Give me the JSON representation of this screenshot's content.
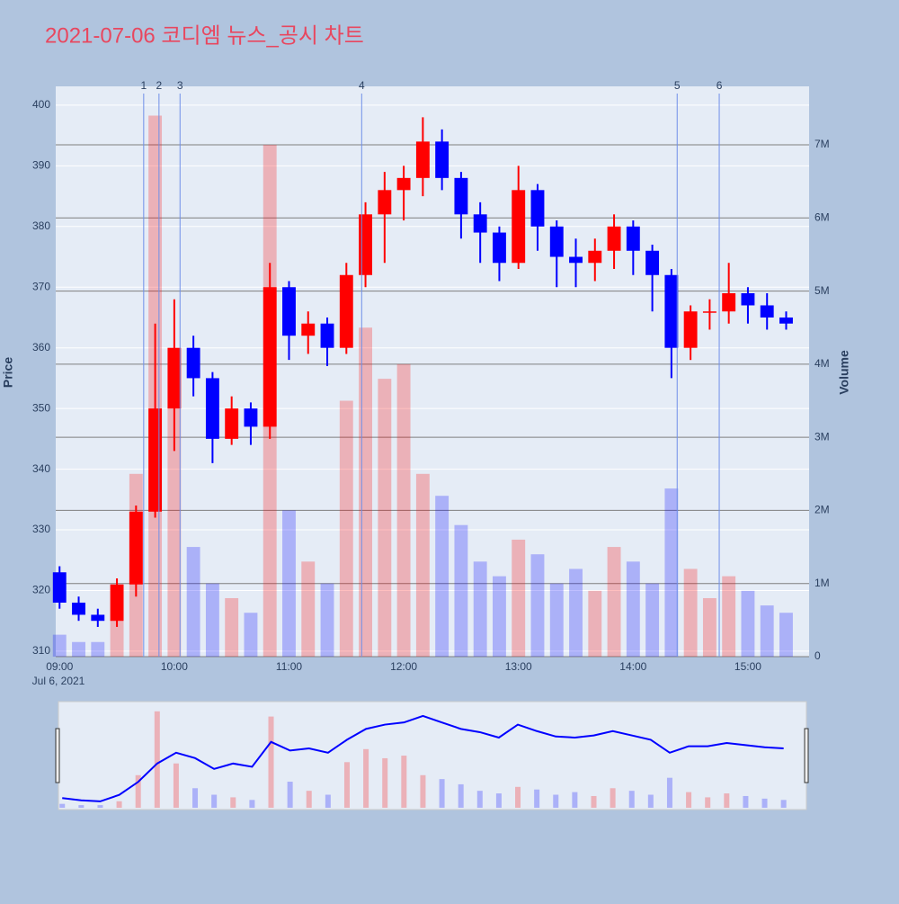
{
  "chart_data": {
    "type": "candlestick",
    "title": "2021-07-06 코디엠 뉴스_공시 차트",
    "y_label": "Price",
    "y2_label": "Volume",
    "x_date_label": "Jul 6, 2021",
    "increasing_color": "#ff0000",
    "decreasing_color": "#0000ff",
    "grid": true,
    "range_slider": true,
    "x": [
      "09:00",
      "09:10",
      "09:20",
      "09:30",
      "09:40",
      "09:50",
      "10:00",
      "10:10",
      "10:20",
      "10:30",
      "10:40",
      "10:50",
      "11:00",
      "11:10",
      "11:20",
      "11:30",
      "11:40",
      "11:50",
      "12:00",
      "12:10",
      "12:20",
      "12:30",
      "12:40",
      "12:50",
      "13:00",
      "13:10",
      "13:20",
      "13:30",
      "13:40",
      "13:50",
      "14:00",
      "14:10",
      "14:20",
      "14:30",
      "14:40",
      "14:50",
      "15:00",
      "15:10",
      "15:20"
    ],
    "open": [
      323,
      318,
      316,
      315,
      321,
      333,
      350,
      360,
      355,
      345,
      350,
      347,
      370,
      362,
      364,
      360,
      372,
      382,
      386,
      388,
      394,
      388,
      382,
      379,
      374,
      386,
      380,
      375,
      374,
      376,
      380,
      376,
      372,
      360,
      366,
      366,
      369,
      367,
      365
    ],
    "high": [
      324,
      319,
      317,
      322,
      334,
      364,
      368,
      362,
      356,
      352,
      351,
      374,
      371,
      366,
      365,
      374,
      384,
      389,
      390,
      398,
      396,
      389,
      384,
      380,
      390,
      387,
      381,
      378,
      378,
      382,
      381,
      377,
      373,
      367,
      368,
      374,
      370,
      369,
      366
    ],
    "low": [
      317,
      315,
      314,
      314,
      319,
      332,
      343,
      352,
      341,
      344,
      344,
      345,
      358,
      359,
      357,
      359,
      370,
      374,
      381,
      385,
      386,
      378,
      374,
      371,
      373,
      376,
      370,
      370,
      371,
      373,
      372,
      366,
      355,
      358,
      363,
      364,
      364,
      363,
      363
    ],
    "close": [
      318,
      316,
      315,
      321,
      333,
      350,
      360,
      355,
      345,
      350,
      347,
      370,
      362,
      364,
      360,
      372,
      382,
      386,
      388,
      394,
      388,
      382,
      379,
      374,
      386,
      380,
      375,
      374,
      376,
      380,
      376,
      372,
      360,
      366,
      366,
      369,
      367,
      365,
      364
    ],
    "volume": [
      300000,
      200000,
      200000,
      500000,
      2500000,
      7400000,
      3400000,
      1500000,
      1000000,
      800000,
      600000,
      7000000,
      2000000,
      1300000,
      1000000,
      3500000,
      4500000,
      3800000,
      4000000,
      2500000,
      2200000,
      1800000,
      1300000,
      1100000,
      1600000,
      1400000,
      1000000,
      1200000,
      900000,
      1500000,
      1300000,
      1000000,
      2300000,
      1200000,
      800000,
      1100000,
      900000,
      700000,
      600000
    ],
    "xlim": [
      "08:58",
      "15:32"
    ],
    "xticks": [
      "09:00",
      "10:00",
      "11:00",
      "12:00",
      "13:00",
      "14:00",
      "15:00"
    ],
    "ylim": [
      309.1,
      403.1
    ],
    "yticks": [
      310,
      320,
      330,
      340,
      350,
      360,
      370,
      380,
      390,
      400
    ],
    "y2lim": [
      0,
      7800000
    ],
    "y2ticks": [
      0,
      {
        "value": 1000000,
        "label": "1M"
      },
      {
        "value": 2000000,
        "label": "2M"
      },
      {
        "value": 3000000,
        "label": "3M"
      },
      {
        "value": 4000000,
        "label": "4M"
      },
      {
        "value": 5000000,
        "label": "5M"
      },
      {
        "value": 6000000,
        "label": "6M"
      },
      {
        "value": 7000000,
        "label": "7M"
      }
    ],
    "annotations": [
      {
        "x": "09:44",
        "text": "1"
      },
      {
        "x": "09:52",
        "text": "2"
      },
      {
        "x": "10:03",
        "text": "3"
      },
      {
        "x": "11:38",
        "text": "4"
      },
      {
        "x": "14:23",
        "text": "5"
      },
      {
        "x": "14:45",
        "text": "6"
      }
    ]
  }
}
